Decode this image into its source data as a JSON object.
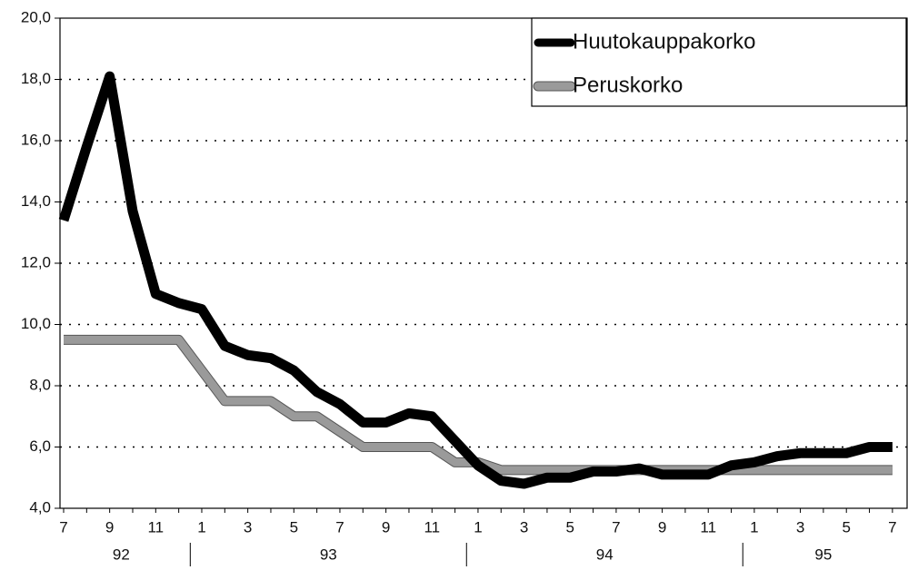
{
  "chart_data": {
    "type": "line",
    "categories": [
      "7",
      null,
      "9",
      null,
      "11",
      null,
      "1",
      null,
      "3",
      null,
      "5",
      null,
      "7",
      null,
      "9",
      null,
      "11",
      null,
      "1",
      null,
      "3",
      null,
      "5",
      null,
      "7",
      null,
      "9",
      null,
      "11",
      null,
      "1",
      null,
      "3",
      null,
      "5",
      null,
      "7"
    ],
    "year_labels": [
      "92",
      "93",
      "94",
      "95"
    ],
    "series": [
      {
        "name": "Huutokauppakorko",
        "color": "#000000",
        "values": [
          13.4,
          15.8,
          18.1,
          13.7,
          11.0,
          10.7,
          10.5,
          9.3,
          9.0,
          8.9,
          8.5,
          7.8,
          7.4,
          6.8,
          6.8,
          7.1,
          7.0,
          6.2,
          5.4,
          4.9,
          4.8,
          5.0,
          5.0,
          5.2,
          5.2,
          5.3,
          5.1,
          5.1,
          5.1,
          5.4,
          5.5,
          5.7,
          5.8,
          5.8,
          5.8,
          6.0,
          6.0
        ]
      },
      {
        "name": "Peruskorko",
        "color": "#9a9a9a",
        "values": [
          9.5,
          9.5,
          9.5,
          9.5,
          9.5,
          9.5,
          8.5,
          7.5,
          7.5,
          7.5,
          7.0,
          7.0,
          6.5,
          6.0,
          6.0,
          6.0,
          6.0,
          5.5,
          5.5,
          5.25,
          5.25,
          5.25,
          5.25,
          5.25,
          5.25,
          5.25,
          5.25,
          5.25,
          5.25,
          5.25,
          5.25,
          5.25,
          5.25,
          5.25,
          5.25,
          5.25,
          5.25
        ]
      }
    ],
    "ylim": [
      4,
      20
    ],
    "yticks": [
      {
        "value": 4,
        "label": "4,0"
      },
      {
        "value": 6,
        "label": "6,0"
      },
      {
        "value": 8,
        "label": "8,0"
      },
      {
        "value": 10,
        "label": "10,0"
      },
      {
        "value": 12,
        "label": "12,0"
      },
      {
        "value": 14,
        "label": "14,0"
      },
      {
        "value": 16,
        "label": "16,0"
      },
      {
        "value": 18,
        "label": "18,0"
      },
      {
        "value": 20,
        "label": "20,0"
      }
    ],
    "grid": true,
    "legend": "upper right"
  }
}
